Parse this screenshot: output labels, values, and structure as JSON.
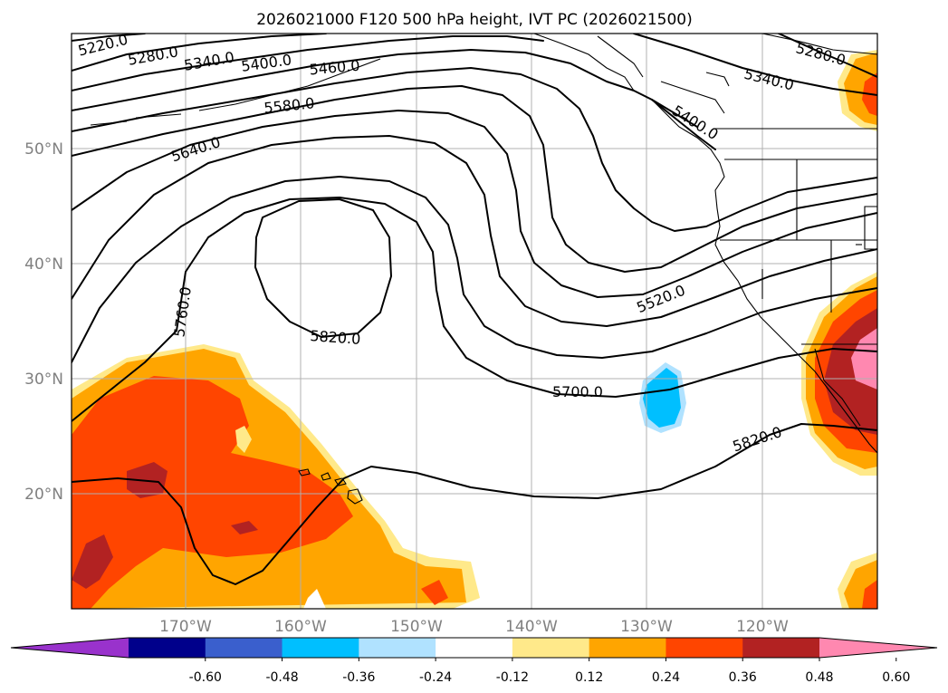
{
  "title": "2026021000 F120 500 hPa height, IVT PC (2026021500)",
  "lat_labels": [
    "50°N",
    "40°N",
    "30°N",
    "20°N"
  ],
  "lon_labels": [
    "170°W",
    "160°W",
    "150°W",
    "140°W",
    "130°W",
    "120°W"
  ],
  "contour_labels": [
    "5220.0",
    "5280.0",
    "5340.0",
    "5400.0",
    "5460.0",
    "5580.0",
    "5640.0",
    "5760.0",
    "5820.0",
    "5700.0",
    "5520.0",
    "5820.0",
    "5280.0",
    "5340.0",
    "5400.0"
  ],
  "colorbar": {
    "ticks": [
      "-0.60",
      "-0.48",
      "-0.36",
      "-0.24",
      "-0.12",
      "0.12",
      "0.24",
      "0.36",
      "0.48",
      "0.60"
    ],
    "colors": [
      "#9932CC",
      "#00008B",
      "#3A5FCD",
      "#00BFFF",
      "#B0E2FF",
      "#FFFFFF",
      "#FFE98A",
      "#FFA500",
      "#FF4500",
      "#B22222",
      "#FF88B0"
    ]
  },
  "colors": {
    "contour": "#000000",
    "gridline": "#b0b0b0",
    "axis_label": "#808080"
  }
}
